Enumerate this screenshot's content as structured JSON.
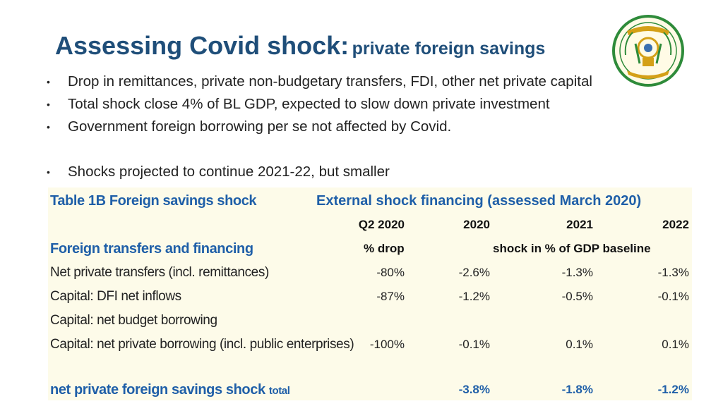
{
  "title": {
    "main": "Assessing Covid shock:",
    "sub": "private foreign savings"
  },
  "bullets": [
    "Drop in remittances, private non-budgetary transfers, FDI, other net private capital",
    "Total shock close 4% of BL GDP, expected to slow down private investment",
    "Government foreign borrowing per se not affected by Covid.",
    "Shocks projected to continue 2021-22, but smaller"
  ],
  "bullet_marker": "•",
  "seal": {
    "icon": "rwanda-coat-of-arms-icon",
    "ring_color": "#2e8b3a",
    "ribbon_color": "#d4a017"
  },
  "table": {
    "caption": "Table 1B Foreign savings shock",
    "heading": "External shock financing (assessed March 2020)",
    "columns": [
      "Q2 2020",
      "2020",
      "2021",
      "2022"
    ],
    "section_label": "Foreign transfers and financing",
    "unit_pct_drop": "% drop",
    "unit_shock": "shock in % of GDP baseline",
    "rows": [
      {
        "label": "Net private transfers (incl. remittances)",
        "values": [
          "-80%",
          "-2.6%",
          "-1.3%",
          "-1.3%"
        ]
      },
      {
        "label": "Capital: DFI net inflows",
        "values": [
          "-87%",
          "-1.2%",
          "-0.5%",
          "-0.1%"
        ]
      },
      {
        "label": "Capital: net budget borrowing",
        "values": [
          "",
          "",
          "",
          ""
        ]
      },
      {
        "label": "Capital: net private borrowing (incl. public enterprises)",
        "values": [
          "-100%",
          "-0.1%",
          "0.1%",
          "0.1%"
        ]
      }
    ],
    "total": {
      "label": "net private foreign savings shock",
      "suffix": "total",
      "values": [
        "",
        "-3.8%",
        "-1.8%",
        "-1.2%"
      ]
    },
    "colors": {
      "panel": "#fdfbe9",
      "blue": "#1f5fa8"
    }
  }
}
